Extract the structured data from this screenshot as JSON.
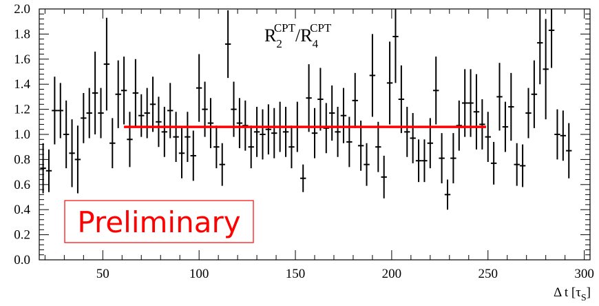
{
  "chart_data": {
    "type": "scatter",
    "title_parts": {
      "R1": "R",
      "sub1": "2",
      "sup1": "CPT",
      "slash": "/",
      "R2": "R",
      "sub2": "4",
      "sup2": "CPT"
    },
    "xlabel_parts": {
      "main": "Δ t [τ",
      "sub": "S",
      "close": "]"
    },
    "ylabel": "",
    "xlim": [
      17,
      303
    ],
    "ylim": [
      0,
      2
    ],
    "x_ticks": [
      50,
      100,
      150,
      200,
      250,
      300
    ],
    "y_ticks": [
      0.0,
      0.2,
      0.4,
      0.6,
      0.8,
      1.0,
      1.2,
      1.4,
      1.6,
      1.8,
      2.0
    ],
    "y_tick_labels": [
      "0.0",
      "0.2",
      "0.4",
      "0.6",
      "0.8",
      "1.0",
      "1.2",
      "1.4",
      "1.6",
      "1.8",
      "2.0"
    ],
    "x_tick_labels": [
      "50",
      "100",
      "150",
      "200",
      "250",
      "300"
    ],
    "annotation": "Preliminary",
    "fit": {
      "x_start": 61,
      "x_end": 249,
      "value": 1.06,
      "color": "#ff0000"
    },
    "x_bin_width": 3,
    "x_start": 19,
    "points": [
      {
        "y": 0.73,
        "err": 0.2
      },
      {
        "y": 0.71,
        "err": 0.17
      },
      {
        "y": 1.19,
        "err": 0.27
      },
      {
        "y": 1.19,
        "err": 0.22
      },
      {
        "y": 1.0,
        "err": 0.27
      },
      {
        "y": 0.85,
        "err": 0.27
      },
      {
        "y": 0.8,
        "err": 0.27
      },
      {
        "y": 1.13,
        "err": 0.2
      },
      {
        "y": 1.17,
        "err": 0.2
      },
      {
        "y": 1.33,
        "err": 0.33
      },
      {
        "y": 1.17,
        "err": 0.2
      },
      {
        "y": 1.56,
        "err": 0.37
      },
      {
        "y": 0.93,
        "err": 0.2
      },
      {
        "y": 1.32,
        "err": 0.27
      },
      {
        "y": 1.35,
        "err": 0.27
      },
      {
        "y": 0.96,
        "err": 0.22
      },
      {
        "y": 1.33,
        "err": 0.27
      },
      {
        "y": 1.15,
        "err": 0.17
      },
      {
        "y": 1.17,
        "err": 0.2
      },
      {
        "y": 1.24,
        "err": 0.22
      },
      {
        "y": 1.1,
        "err": 0.2
      },
      {
        "y": 1.02,
        "err": 0.2
      },
      {
        "y": 1.19,
        "err": 0.22
      },
      {
        "y": 0.98,
        "err": 0.2
      },
      {
        "y": 0.85,
        "err": 0.2
      },
      {
        "y": 0.98,
        "err": 0.2
      },
      {
        "y": 0.83,
        "err": 0.2
      },
      {
        "y": 1.37,
        "err": 0.27
      },
      {
        "y": 1.2,
        "err": 0.22
      },
      {
        "y": 1.09,
        "err": 0.2
      },
      {
        "y": 0.9,
        "err": 0.17
      },
      {
        "y": 0.76,
        "err": 0.17
      },
      {
        "y": 1.72,
        "err": 0.27
      },
      {
        "y": 1.2,
        "err": 0.22
      },
      {
        "y": 1.09,
        "err": 0.2
      },
      {
        "y": 1.07,
        "err": 0.2
      },
      {
        "y": 0.9,
        "err": 0.17
      },
      {
        "y": 1.02,
        "err": 0.2
      },
      {
        "y": 1.0,
        "err": 0.2
      },
      {
        "y": 1.04,
        "err": 0.2
      },
      {
        "y": 1.01,
        "err": 0.2
      },
      {
        "y": 1.06,
        "err": 0.2
      },
      {
        "y": 1.02,
        "err": 0.2
      },
      {
        "y": 0.9,
        "err": 0.17
      },
      {
        "y": 1.06,
        "err": 0.2
      },
      {
        "y": 0.65,
        "err": 0.11
      },
      {
        "y": 1.29,
        "err": 0.27
      },
      {
        "y": 1.01,
        "err": 0.2
      },
      {
        "y": 1.28,
        "err": 0.25
      },
      {
        "y": 1.05,
        "err": 0.2
      },
      {
        "y": 1.17,
        "err": 0.22
      },
      {
        "y": 1.02,
        "err": 0.2
      },
      {
        "y": 1.15,
        "err": 0.22
      },
      {
        "y": 0.94,
        "err": 0.2
      },
      {
        "y": 1.27,
        "err": 0.22
      },
      {
        "y": 0.91,
        "err": 0.2
      },
      {
        "y": 0.76,
        "err": 0.17
      },
      {
        "y": 1.47,
        "err": 0.33
      },
      {
        "y": 0.9,
        "err": 0.2
      },
      {
        "y": 0.66,
        "err": 0.17
      },
      {
        "y": 1.41,
        "err": 0.33
      },
      {
        "y": 1.78,
        "err": 0.37
      },
      {
        "y": 1.28,
        "err": 0.27
      },
      {
        "y": 1.02,
        "err": 0.2
      },
      {
        "y": 0.97,
        "err": 0.2
      },
      {
        "y": 0.79,
        "err": 0.17
      },
      {
        "y": 0.79,
        "err": 0.17
      },
      {
        "y": 0.93,
        "err": 0.2
      },
      {
        "y": 1.35,
        "err": 0.27
      },
      {
        "y": 0.81,
        "err": 0.2
      },
      {
        "y": 0.52,
        "err": 0.12
      },
      {
        "y": 0.81,
        "err": 0.2
      },
      {
        "y": 1.07,
        "err": 0.2
      },
      {
        "y": 1.25,
        "err": 0.27
      },
      {
        "y": 1.25,
        "err": 0.27
      },
      {
        "y": 1.18,
        "err": 0.3
      },
      {
        "y": 1.08,
        "err": 0.2
      },
      {
        "y": 0.98,
        "err": 0.2
      },
      {
        "y": 0.77,
        "err": 0.17
      },
      {
        "y": 1.3,
        "err": 0.27
      },
      {
        "y": 1.06,
        "err": 0.2
      },
      {
        "y": 1.22,
        "err": 0.27
      },
      {
        "y": 0.76,
        "err": 0.17
      },
      {
        "y": 0.75,
        "err": 0.17
      },
      {
        "y": 1.17,
        "err": 0.2
      },
      {
        "y": 1.32,
        "err": 0.27
      },
      {
        "y": 1.73,
        "err": 0.33
      },
      {
        "y": 1.52,
        "err": 0.4
      },
      {
        "y": 1.83,
        "err": 0.3
      },
      {
        "y": 1.0,
        "err": 0.2
      },
      {
        "y": 0.99,
        "err": 0.2
      },
      {
        "y": 0.87,
        "err": 0.22
      }
    ]
  }
}
